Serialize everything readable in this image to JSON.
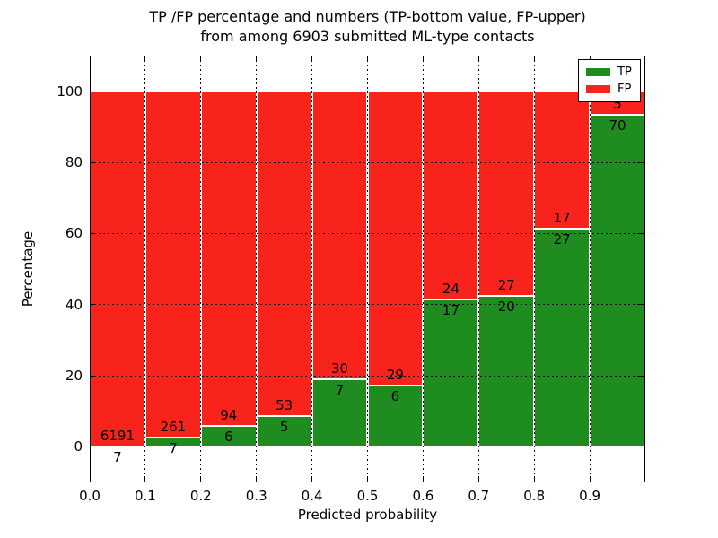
{
  "figure": {
    "title_line1": "TP /FP percentage and numbers (TP-bottom value, FP-upper)",
    "title_line2": "from among 6903 submitted ML-type contacts"
  },
  "chart_data": {
    "type": "bar",
    "stacked": true,
    "normalized": "percent",
    "title": "TP /FP percentage and numbers (TP-bottom value, FP-upper) from among 6903 submitted ML-type contacts",
    "xlabel": "Predicted probability",
    "ylabel": "Percentage",
    "total_contacts": 6903,
    "bin_width": 0.1,
    "bin_starts": [
      0.0,
      0.1,
      0.2,
      0.3,
      0.4,
      0.5,
      0.6,
      0.7,
      0.8,
      0.9
    ],
    "x_tick_labels": [
      "0.0",
      "0.1",
      "0.2",
      "0.3",
      "0.4",
      "0.5",
      "0.6",
      "0.7",
      "0.8",
      "0.9"
    ],
    "x_tick_values": [
      0.0,
      0.1,
      0.2,
      0.3,
      0.4,
      0.5,
      0.6,
      0.7,
      0.8,
      0.9
    ],
    "y_ticks": [
      0,
      20,
      40,
      60,
      80,
      100
    ],
    "xlim": [
      0.0,
      1.0
    ],
    "ylim": [
      -10,
      110
    ],
    "grid": true,
    "series": [
      {
        "name": "TP",
        "color": "#1e8c1e",
        "counts": [
          7,
          7,
          6,
          5,
          7,
          6,
          17,
          20,
          27,
          70
        ]
      },
      {
        "name": "FP",
        "color": "#f8241c",
        "counts": [
          6191,
          261,
          94,
          53,
          30,
          29,
          24,
          27,
          17,
          5
        ]
      }
    ],
    "tp_percent_by_bin": [
      0.11,
      2.61,
      6.0,
      8.62,
      18.92,
      17.14,
      41.46,
      42.55,
      61.36,
      93.33
    ],
    "legend": {
      "position": "upper right",
      "entries": [
        {
          "label": "TP",
          "color": "#1e8c1e"
        },
        {
          "label": "FP",
          "color": "#f8241c"
        }
      ]
    }
  }
}
